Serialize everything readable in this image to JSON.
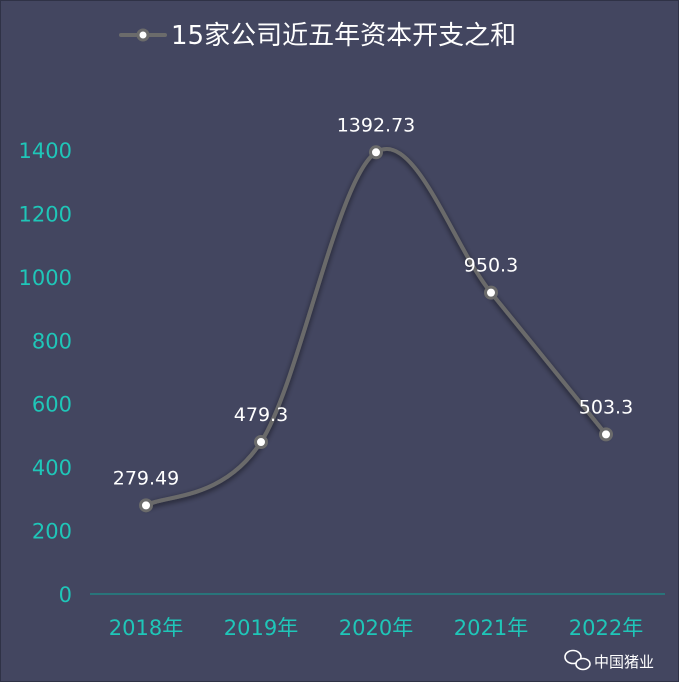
{
  "chart_data": {
    "type": "line",
    "title": "",
    "xlabel": "",
    "ylabel": "",
    "categories": [
      "2018年",
      "2019年",
      "2020年",
      "2021年",
      "2022年"
    ],
    "series": [
      {
        "name": "15家公司近五年资本开支之和",
        "values": [
          279.49,
          479.3,
          1392.73,
          950.3,
          503.3
        ],
        "labels": [
          "279.49",
          "479.3",
          "1392.73",
          "950.3",
          "503.3"
        ]
      }
    ],
    "ylim": [
      0,
      1400
    ],
    "yticks": [
      0,
      200,
      400,
      600,
      800,
      1000,
      1200,
      1400
    ],
    "smooth": true,
    "grid": false,
    "legend": "top-center",
    "colors": {
      "background": "#434660",
      "line": "#6b6b6b",
      "marker_fill": "#ffffff",
      "marker_stroke": "#6b6b6b",
      "tick_text": "#1fc6b8",
      "axis_line": "#1a8f8a",
      "label_text": "#ffffff"
    }
  },
  "watermark": {
    "text": "中国猪业",
    "icon": "wechat-icon"
  }
}
